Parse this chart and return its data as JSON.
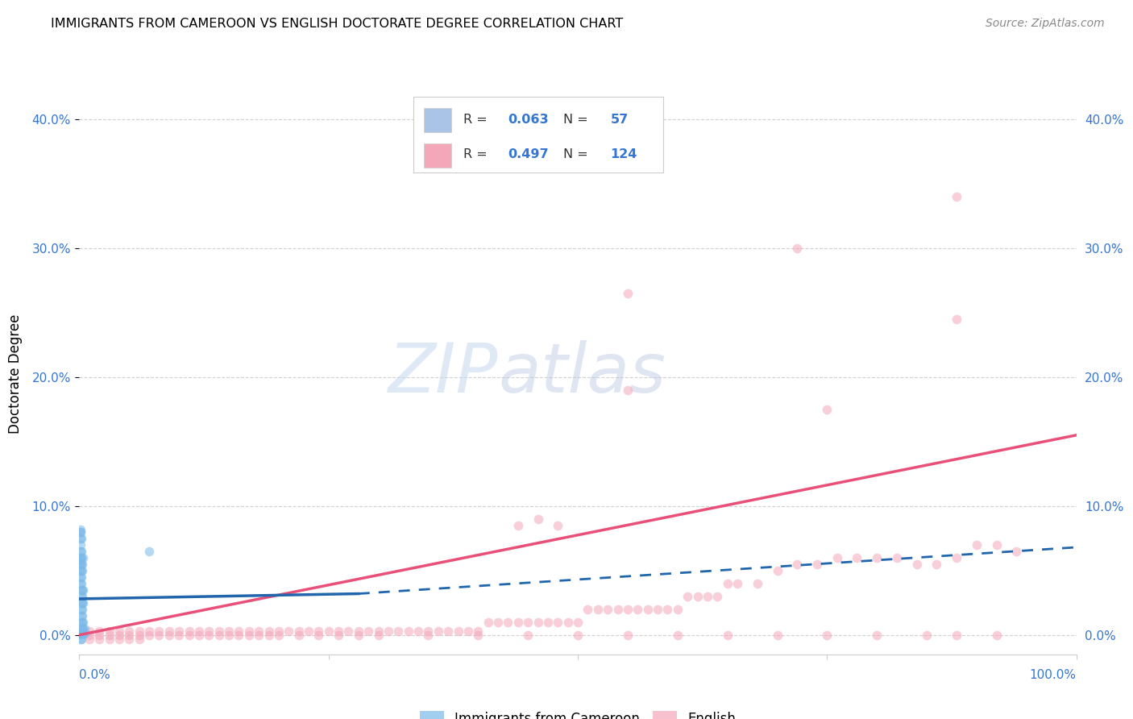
{
  "title": "IMMIGRANTS FROM CAMEROON VS ENGLISH DOCTORATE DEGREE CORRELATION CHART",
  "source": "Source: ZipAtlas.com",
  "ylabel": "Doctorate Degree",
  "ytick_vals": [
    0.0,
    0.1,
    0.2,
    0.3,
    0.4
  ],
  "legend_label_color": "#3575d4",
  "legend_entries": [
    {
      "color": "#aac4e8",
      "R": "0.063",
      "N": "57"
    },
    {
      "color": "#f4a7b9",
      "R": "0.497",
      "N": "124"
    }
  ],
  "blue_scatter": {
    "x": [
      0.002,
      0.003,
      0.004,
      0.005,
      0.002,
      0.003,
      0.004,
      0.002,
      0.003,
      0.002,
      0.003,
      0.002,
      0.003,
      0.004,
      0.002,
      0.003,
      0.002,
      0.003,
      0.004,
      0.001,
      0.002,
      0.001,
      0.002,
      0.001,
      0.002,
      0.003,
      0.001,
      0.002,
      0.003,
      0.001,
      0.002,
      0.001,
      0.002,
      0.001,
      0.001,
      0.002,
      0.001,
      0.001,
      0.001,
      0.001,
      0.001,
      0.001,
      0.001,
      0.001,
      0.001,
      0.001,
      0.001,
      0.001,
      0.07,
      0.002,
      0.003,
      0.004,
      0.005,
      0.001,
      0.002,
      0.004,
      0.001
    ],
    "y": [
      0.005,
      0.005,
      0.005,
      0.005,
      0.01,
      0.01,
      0.01,
      0.015,
      0.015,
      0.02,
      0.02,
      0.025,
      0.025,
      0.025,
      0.03,
      0.03,
      0.035,
      0.035,
      0.035,
      0.04,
      0.04,
      0.045,
      0.045,
      0.05,
      0.05,
      0.05,
      0.055,
      0.055,
      0.055,
      0.06,
      0.06,
      0.065,
      0.065,
      0.07,
      0.075,
      0.075,
      0.08,
      0.08,
      0.082,
      0.001,
      0.001,
      0.001,
      0.001,
      0.001,
      0.001,
      0.001,
      0.001,
      0.001,
      0.065,
      0.001,
      0.001,
      0.001,
      0.001,
      -0.003,
      -0.003,
      0.06,
      0.058
    ]
  },
  "pink_scatter": {
    "x": [
      0.01,
      0.02,
      0.03,
      0.04,
      0.05,
      0.06,
      0.07,
      0.08,
      0.09,
      0.1,
      0.11,
      0.12,
      0.13,
      0.14,
      0.15,
      0.16,
      0.17,
      0.18,
      0.19,
      0.2,
      0.21,
      0.22,
      0.23,
      0.24,
      0.25,
      0.26,
      0.27,
      0.28,
      0.29,
      0.3,
      0.31,
      0.32,
      0.33,
      0.34,
      0.35,
      0.36,
      0.37,
      0.38,
      0.39,
      0.4,
      0.41,
      0.42,
      0.43,
      0.44,
      0.45,
      0.46,
      0.47,
      0.48,
      0.49,
      0.5,
      0.51,
      0.52,
      0.53,
      0.54,
      0.55,
      0.56,
      0.57,
      0.58,
      0.59,
      0.6,
      0.61,
      0.62,
      0.63,
      0.64,
      0.65,
      0.66,
      0.68,
      0.7,
      0.72,
      0.74,
      0.76,
      0.78,
      0.8,
      0.82,
      0.84,
      0.86,
      0.88,
      0.9,
      0.92,
      0.94,
      0.01,
      0.02,
      0.03,
      0.04,
      0.05,
      0.06,
      0.07,
      0.08,
      0.09,
      0.1,
      0.11,
      0.12,
      0.13,
      0.14,
      0.15,
      0.16,
      0.17,
      0.18,
      0.19,
      0.2,
      0.22,
      0.24,
      0.26,
      0.28,
      0.3,
      0.35,
      0.4,
      0.45,
      0.5,
      0.55,
      0.6,
      0.65,
      0.7,
      0.75,
      0.8,
      0.85,
      0.88,
      0.92,
      0.01,
      0.02,
      0.03,
      0.04,
      0.05,
      0.06,
      0.44,
      0.46,
      0.48
    ],
    "y": [
      0.003,
      0.003,
      0.003,
      0.003,
      0.003,
      0.003,
      0.003,
      0.003,
      0.003,
      0.003,
      0.003,
      0.003,
      0.003,
      0.003,
      0.003,
      0.003,
      0.003,
      0.003,
      0.003,
      0.003,
      0.003,
      0.003,
      0.003,
      0.003,
      0.003,
      0.003,
      0.003,
      0.003,
      0.003,
      0.003,
      0.003,
      0.003,
      0.003,
      0.003,
      0.003,
      0.003,
      0.003,
      0.003,
      0.003,
      0.003,
      0.01,
      0.01,
      0.01,
      0.01,
      0.01,
      0.01,
      0.01,
      0.01,
      0.01,
      0.01,
      0.02,
      0.02,
      0.02,
      0.02,
      0.02,
      0.02,
      0.02,
      0.02,
      0.02,
      0.02,
      0.03,
      0.03,
      0.03,
      0.03,
      0.04,
      0.04,
      0.04,
      0.05,
      0.055,
      0.055,
      0.06,
      0.06,
      0.06,
      0.06,
      0.055,
      0.055,
      0.06,
      0.07,
      0.07,
      0.065,
      0.0,
      0.0,
      0.0,
      0.0,
      0.0,
      0.0,
      0.0,
      0.0,
      0.0,
      0.0,
      0.0,
      0.0,
      0.0,
      0.0,
      0.0,
      0.0,
      0.0,
      0.0,
      0.0,
      0.0,
      0.0,
      0.0,
      0.0,
      0.0,
      0.0,
      0.0,
      0.0,
      0.0,
      0.0,
      0.0,
      0.0,
      0.0,
      0.0,
      0.0,
      0.0,
      0.0,
      0.0,
      0.0,
      -0.003,
      -0.003,
      -0.003,
      -0.003,
      -0.003,
      -0.003,
      0.085,
      0.09,
      0.085
    ]
  },
  "pink_outliers": {
    "x": [
      0.55,
      0.72,
      0.88,
      0.55,
      0.75,
      0.88
    ],
    "y": [
      0.265,
      0.3,
      0.34,
      0.19,
      0.175,
      0.245
    ]
  },
  "blue_solid_line": {
    "x": [
      0.0,
      0.28
    ],
    "y": [
      0.028,
      0.032
    ]
  },
  "blue_dashed_line": {
    "x": [
      0.28,
      1.0
    ],
    "y": [
      0.032,
      0.068
    ]
  },
  "pink_solid_line": {
    "x": [
      0.0,
      1.0
    ],
    "y": [
      0.0,
      0.155
    ]
  },
  "scatter_alpha": 0.55,
  "scatter_size": 70,
  "blue_color": "#7ab8e8",
  "pink_color": "#f4a7b9",
  "blue_line_color": "#2166ac",
  "pink_line_color": "#e8507a",
  "grid_color": "#cccccc",
  "background_color": "#ffffff",
  "watermark_zip": "ZIP",
  "watermark_atlas": "atlas",
  "xlim": [
    0.0,
    1.0
  ],
  "ylim": [
    -0.015,
    0.42
  ],
  "title_fontsize": 11.5,
  "source_fontsize": 10
}
